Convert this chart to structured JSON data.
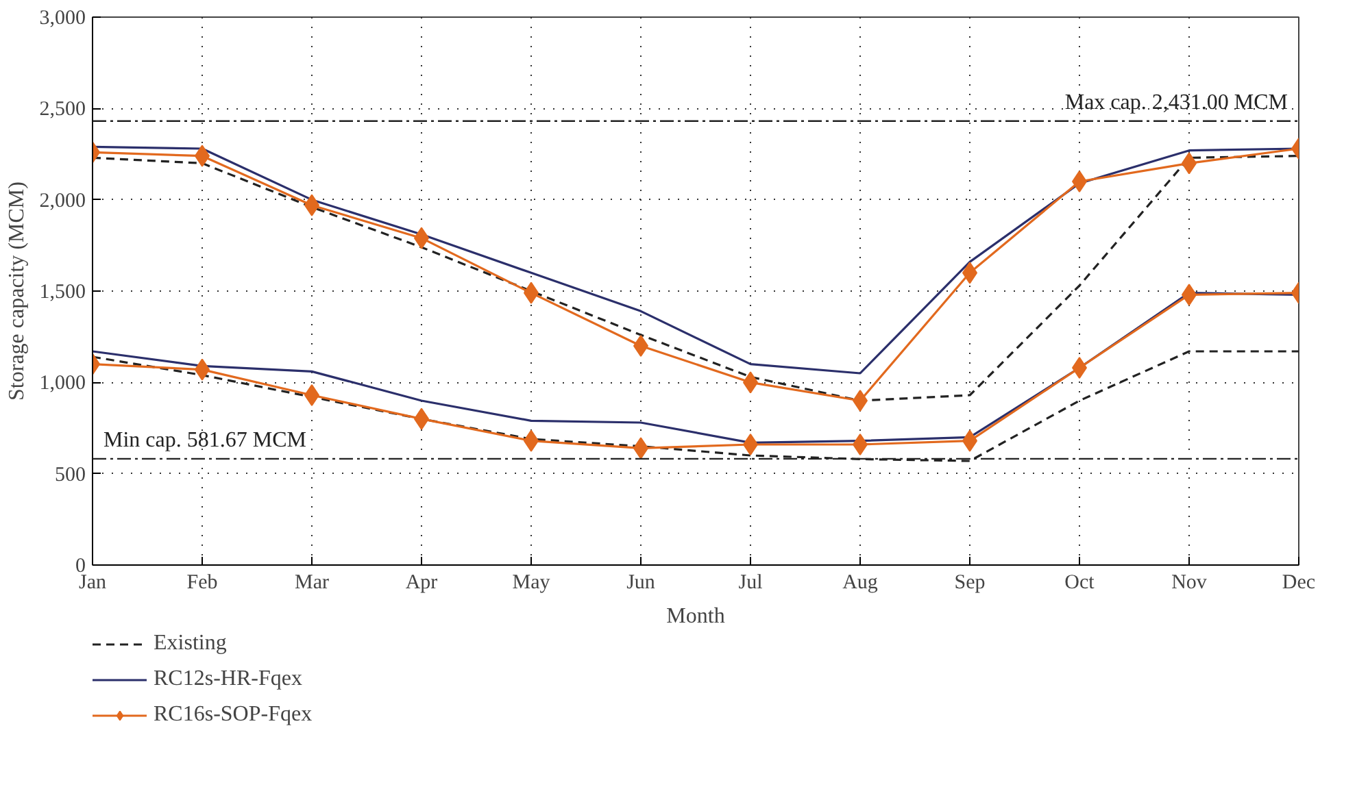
{
  "chart_data": {
    "type": "line",
    "xlabel": "Month",
    "ylabel": "Storage capacity (MCM)",
    "categories": [
      "Jan",
      "Feb",
      "Mar",
      "Apr",
      "May",
      "Jun",
      "Jul",
      "Aug",
      "Sep",
      "Oct",
      "Nov",
      "Dec"
    ],
    "ylim": [
      0,
      3000
    ],
    "yticks": [
      0,
      500,
      {
        "value": 1000,
        "label": "1,000"
      },
      {
        "value": 1500,
        "label": "1,500"
      },
      {
        "value": 2000,
        "label": "2,000"
      },
      {
        "value": 2500,
        "label": "2,500"
      },
      {
        "value": 3000,
        "label": "3,000"
      }
    ],
    "grid": true,
    "legend": "bottom",
    "series": [
      {
        "name": "Existing",
        "color": "#222222",
        "line_style": "dashed",
        "marker": "none",
        "values": [
          2230,
          2200,
          1960,
          1740,
          1500,
          1260,
          1030,
          900,
          930,
          1530,
          2230,
          2240
        ]
      },
      {
        "name": "RC12s-HR-Fqex",
        "color": "#2b2f6b",
        "line_style": "solid",
        "marker": "none",
        "values": [
          2290,
          2280,
          2000,
          1810,
          1600,
          1390,
          1100,
          1050,
          1660,
          2090,
          2270,
          2280
        ]
      },
      {
        "name": "RC16s-SOP-Fqex",
        "color": "#e2691e",
        "line_style": "solid",
        "marker": "diamond",
        "values": [
          2260,
          2240,
          1970,
          1790,
          1490,
          1200,
          1000,
          900,
          1600,
          2100,
          2200,
          2280
        ]
      },
      {
        "color": "#222222",
        "line_style": "dashed",
        "marker": "none",
        "values": [
          1140,
          1040,
          920,
          800,
          690,
          650,
          600,
          580,
          570,
          900,
          1170,
          1170
        ]
      },
      {
        "color": "#2b2f6b",
        "line_style": "solid",
        "marker": "none",
        "values": [
          1170,
          1090,
          1060,
          900,
          790,
          780,
          670,
          680,
          700,
          1080,
          1490,
          1480
        ]
      },
      {
        "color": "#e2691e",
        "line_style": "solid",
        "marker": "diamond",
        "values": [
          1100,
          1070,
          930,
          800,
          680,
          640,
          660,
          660,
          680,
          1080,
          1480,
          1490
        ]
      }
    ],
    "ref_lines": [
      {
        "axis": "y",
        "value": 2431,
        "label": "Max cap. 2,431.00 MCM",
        "line_style": "dashdot"
      },
      {
        "axis": "y",
        "value": 581.67,
        "label": "Min cap. 581.67 MCM",
        "line_style": "dashdot"
      }
    ]
  }
}
